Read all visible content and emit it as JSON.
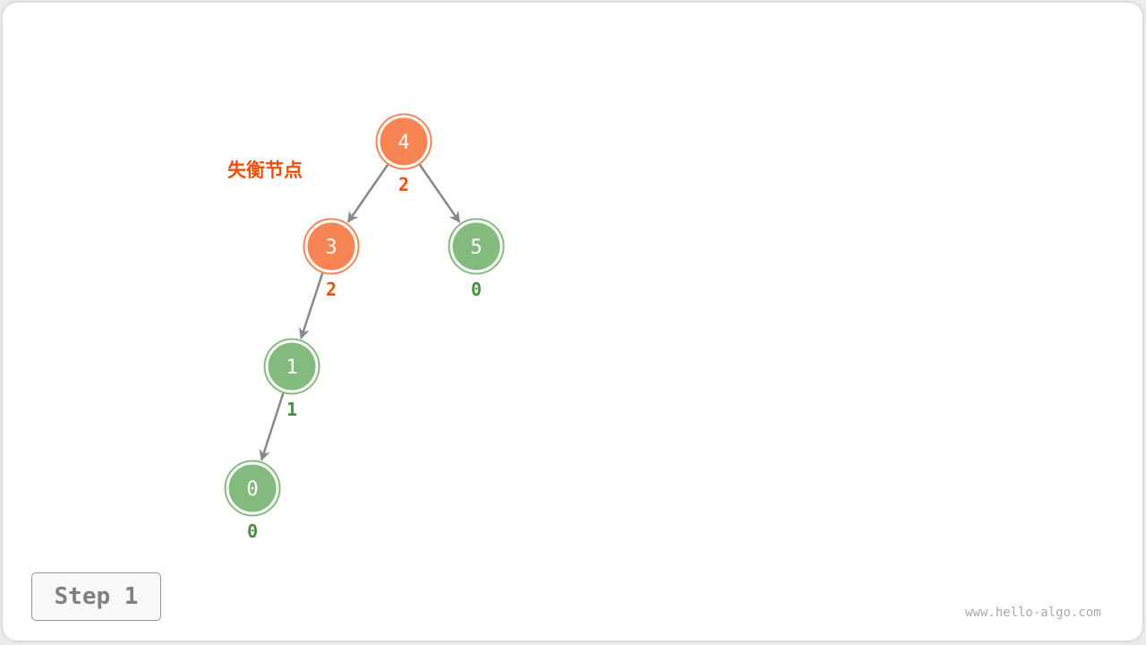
{
  "colors": {
    "unbalanced": "#f78553",
    "balanced": "#83bb7f",
    "unbalanced_text": "#f04e0a",
    "balanced_text": "#4a8e3f",
    "edge": "#888888"
  },
  "annotation": "失衡节点",
  "nodes": [
    {
      "id": "n4",
      "value": "4",
      "height": "2",
      "state": "unbalanced"
    },
    {
      "id": "n3",
      "value": "3",
      "height": "2",
      "state": "unbalanced"
    },
    {
      "id": "n5",
      "value": "5",
      "height": "0",
      "state": "balanced"
    },
    {
      "id": "n1",
      "value": "1",
      "height": "1",
      "state": "balanced"
    },
    {
      "id": "n0",
      "value": "0",
      "height": "0",
      "state": "balanced"
    }
  ],
  "edges": [
    [
      "n4",
      "n3"
    ],
    [
      "n4",
      "n5"
    ],
    [
      "n3",
      "n1"
    ],
    [
      "n1",
      "n0"
    ]
  ],
  "step_label": "Step 1",
  "watermark": "www.hello-algo.com"
}
